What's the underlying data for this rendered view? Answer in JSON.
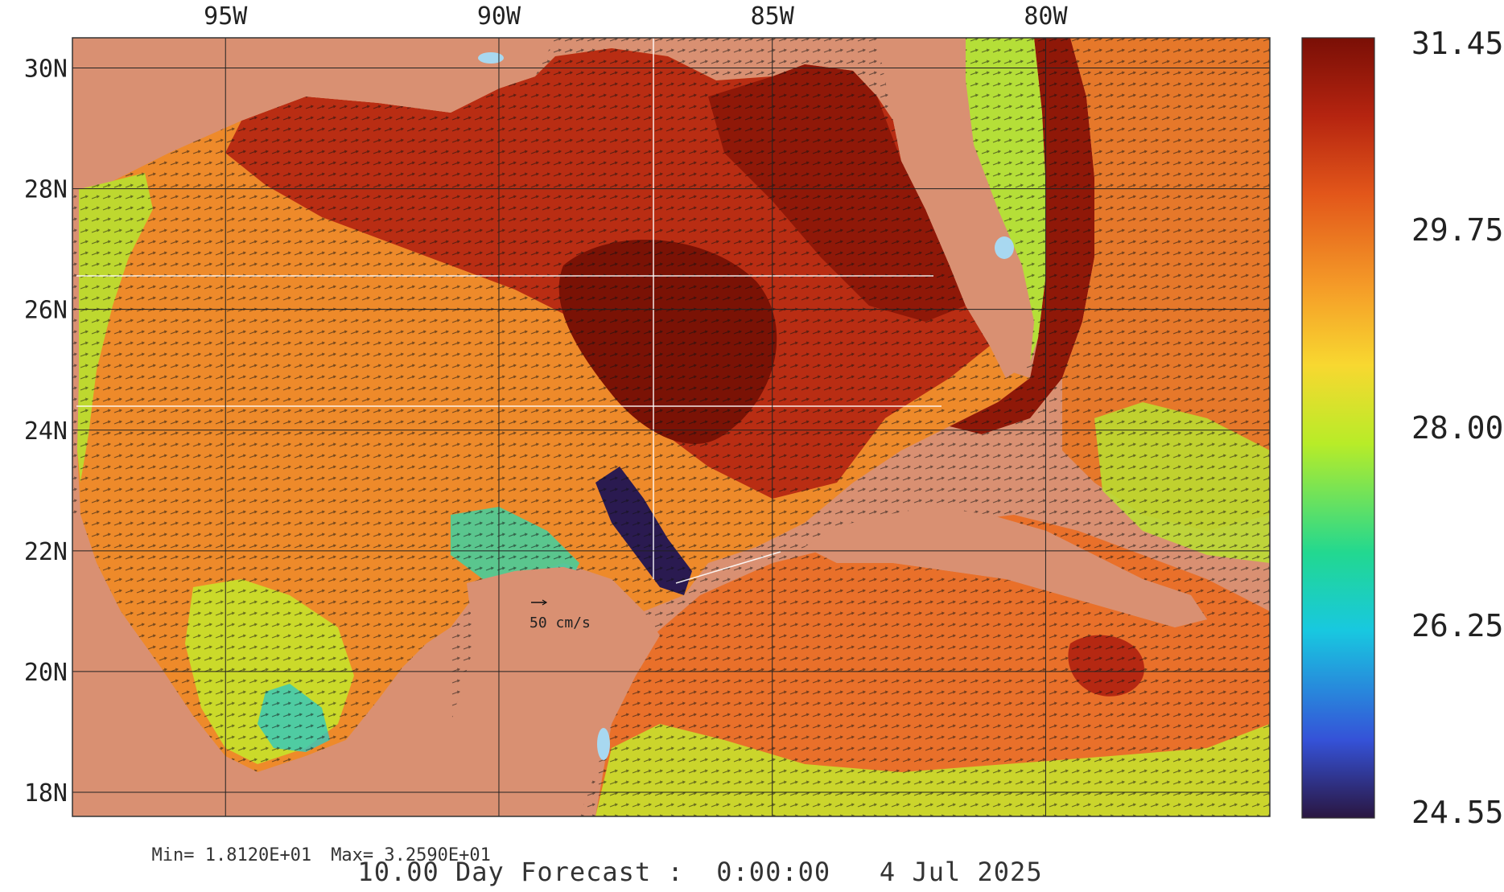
{
  "map": {
    "region": "Gulf of Mexico / Caribbean",
    "lon_labels": [
      "95W",
      "90W",
      "85W",
      "80W"
    ],
    "lat_labels": [
      "30N",
      "28N",
      "26N",
      "24N",
      "22N",
      "20N",
      "18N"
    ],
    "lon_values": [
      -95,
      -90,
      -85,
      -80
    ],
    "lat_values": [
      30,
      28,
      26,
      24,
      22,
      20,
      18
    ],
    "lon_range": [
      -97.8,
      -75.9
    ],
    "lat_range": [
      17.6,
      30.5
    ],
    "field": "sea surface temperature with current vectors",
    "land_color": "#d99072",
    "water_colors": {
      "warmest": "#7a1205",
      "warm": "#d4420f",
      "mid": "#f0a030",
      "cool": "#c4e82a",
      "cold": "#1ccfb0",
      "coldest": "#2a1a50"
    },
    "vector_reference": "50 cm/s"
  },
  "colorbar": {
    "ticks": [
      "31.45",
      "29.75",
      "28.00",
      "26.25",
      "24.55"
    ],
    "tick_values": [
      31.45,
      29.75,
      28.0,
      26.25,
      24.55
    ],
    "range": [
      24.55,
      31.45
    ],
    "stops": [
      "#2a1640",
      "#3552d8",
      "#18c8e0",
      "#22d890",
      "#b8ec28",
      "#f8d830",
      "#f59c28",
      "#e2561a",
      "#b52410",
      "#7a0f06"
    ]
  },
  "stats": {
    "min_text": "Min= 1.8120E+01",
    "max_text": "Max= 3.2590E+01"
  },
  "footer": {
    "text": "10.00 Day Forecast :  0:00:00   4 Jul 2025"
  }
}
